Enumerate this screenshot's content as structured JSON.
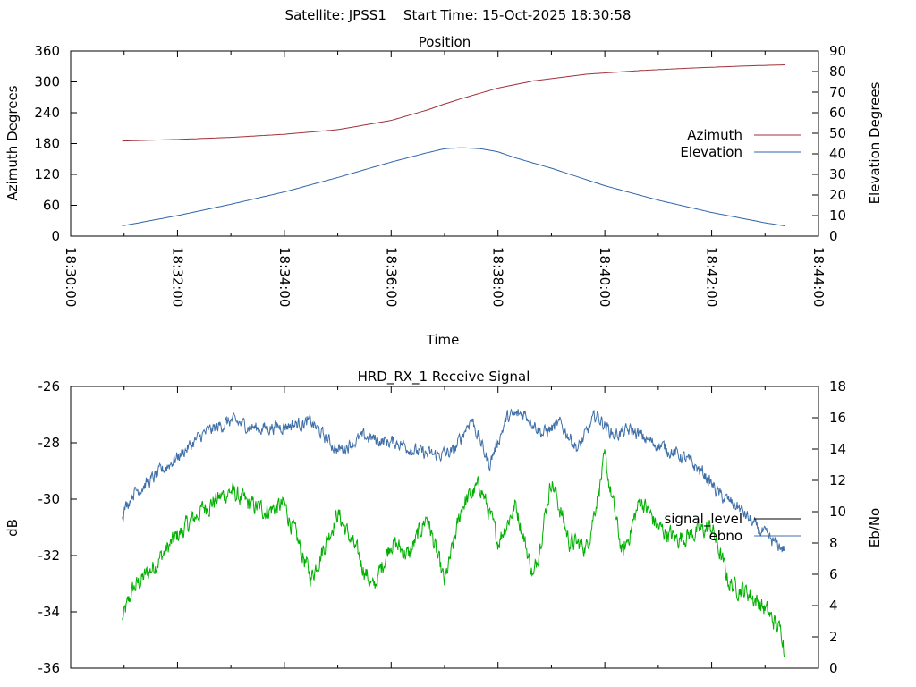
{
  "header": {
    "title": "Satellite: JPSS1    Start Time: 15-Oct-2025 18:30:58"
  },
  "colors": {
    "azimuth": "#a0303a",
    "elevation": "#2f64a8",
    "signal_level": "#00b000",
    "ebno": "#3f6fa8",
    "legend_signal": "#000000"
  },
  "chart_data": [
    {
      "type": "line",
      "title": "Position",
      "xlabel": "Time",
      "ylabel": "Azimuth Degrees",
      "y2label": "Elevation Degrees",
      "xlim_seconds": [
        0,
        840
      ],
      "ylim": [
        0,
        360
      ],
      "y2lim": [
        0,
        90
      ],
      "x_ticks": [
        0,
        120,
        240,
        360,
        480,
        600,
        720,
        840
      ],
      "x_tick_labels": [
        "18:30:00",
        "18:32:00",
        "18:34:00",
        "18:36:00",
        "18:38:00",
        "18:40:00",
        "18:42:00",
        "18:44:00"
      ],
      "y_ticks": [
        0,
        60,
        120,
        180,
        240,
        300,
        360
      ],
      "y_tick_labels": [
        "0",
        "60",
        "120",
        "180",
        "240",
        "300",
        "360"
      ],
      "y2_ticks": [
        0,
        10,
        20,
        30,
        40,
        50,
        60,
        70,
        80,
        90
      ],
      "y2_tick_labels": [
        "0",
        "10",
        "20",
        "30",
        "40",
        "50",
        "60",
        "70",
        "80",
        "90"
      ],
      "legend_position": "right",
      "series": [
        {
          "name": "Azimuth",
          "axis": "y",
          "color_key": "azimuth",
          "x": [
            58,
            120,
            180,
            240,
            300,
            360,
            400,
            420,
            440,
            460,
            480,
            520,
            580,
            640,
            700,
            760,
            802
          ],
          "values": [
            185,
            188,
            192,
            198,
            207,
            225,
            245,
            257,
            268,
            278,
            288,
            302,
            315,
            322,
            327,
            331,
            333
          ]
        },
        {
          "name": "Elevation",
          "axis": "y2",
          "color_key": "elevation",
          "x": [
            58,
            120,
            180,
            240,
            300,
            360,
            400,
            420,
            440,
            460,
            480,
            500,
            540,
            600,
            660,
            720,
            780,
            802
          ],
          "values": [
            5,
            10,
            15.5,
            21.5,
            28.5,
            36,
            40.5,
            42.5,
            43,
            42.5,
            41,
            38,
            33,
            24.5,
            17.5,
            11.5,
            6.5,
            5
          ]
        }
      ]
    },
    {
      "type": "line",
      "title": "HRD_RX_1 Receive Signal",
      "xlabel": "",
      "ylabel": "dB",
      "y2label": "Eb/No",
      "xlim_seconds": [
        0,
        840
      ],
      "ylim": [
        -36,
        -26
      ],
      "y2lim": [
        0,
        18
      ],
      "y_ticks": [
        -36,
        -34,
        -32,
        -30,
        -28,
        -26
      ],
      "y_tick_labels": [
        "-36",
        "-34",
        "-32",
        "-30",
        "-28",
        "-26"
      ],
      "y2_ticks": [
        0,
        2,
        4,
        6,
        8,
        10,
        12,
        14,
        16,
        18
      ],
      "y2_tick_labels": [
        "0",
        "2",
        "4",
        "6",
        "8",
        "10",
        "12",
        "14",
        "16",
        "18"
      ],
      "legend_position": "right",
      "series": [
        {
          "name": "signal_level",
          "axis": "y",
          "color_key": "signal_level",
          "legend_color_key": "legend_signal",
          "x": [
            58,
            70,
            90,
            120,
            150,
            180,
            200,
            220,
            240,
            270,
            300,
            320,
            340,
            360,
            380,
            400,
            420,
            440,
            460,
            480,
            500,
            520,
            540,
            560,
            580,
            600,
            620,
            640,
            660,
            680,
            700,
            720,
            740,
            760,
            780,
            800,
            802
          ],
          "values": [
            -34.3,
            -33.2,
            -32.5,
            -31.3,
            -30.3,
            -29.7,
            -30.2,
            -30.4,
            -30.2,
            -32.8,
            -30.5,
            -31.8,
            -33.2,
            -31.5,
            -32.0,
            -30.6,
            -33.0,
            -30.2,
            -29.5,
            -31.5,
            -30.2,
            -32.8,
            -29.3,
            -31.5,
            -31.7,
            -28.6,
            -32.0,
            -30.0,
            -31.0,
            -31.4,
            -31.2,
            -31.0,
            -33.0,
            -33.3,
            -33.9,
            -34.8,
            -35.8
          ]
        },
        {
          "name": "ebno",
          "axis": "y2",
          "color_key": "ebno",
          "x": [
            58,
            70,
            90,
            120,
            150,
            180,
            210,
            240,
            270,
            300,
            330,
            350,
            370,
            390,
            410,
            430,
            450,
            470,
            490,
            510,
            530,
            550,
            570,
            590,
            610,
            630,
            650,
            670,
            690,
            710,
            730,
            750,
            770,
            790,
            802
          ],
          "values": [
            9.9,
            11.2,
            12.0,
            13.5,
            15.0,
            15.8,
            15.3,
            15.5,
            15.7,
            13.9,
            14.8,
            14.5,
            14.4,
            13.8,
            13.6,
            13.8,
            16.0,
            13.0,
            16.0,
            16.3,
            15.0,
            15.6,
            14.0,
            16.2,
            14.9,
            15.2,
            14.5,
            14.0,
            13.4,
            12.5,
            11.0,
            10.3,
            9.0,
            8.0,
            7.6
          ]
        }
      ]
    }
  ]
}
